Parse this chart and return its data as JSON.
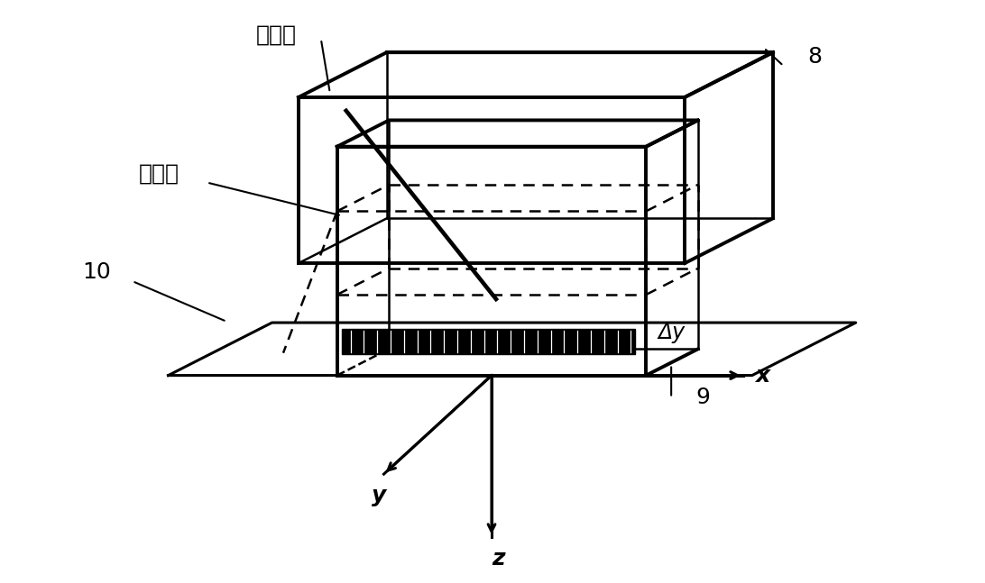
{
  "bg_color": "#ffffff",
  "line_color": "#000000",
  "lw_thick": 2.8,
  "lw_thin": 1.8,
  "lw_med": 2.2,
  "font_size_chinese": 18,
  "font_size_num": 18,
  "font_size_axis": 18,
  "labels": {
    "ru_she_mian": "入射面",
    "tan_ce_mian": "探测面",
    "x_axis": "x",
    "y_axis": "y",
    "z_axis": "z",
    "delta_y": "Δy",
    "num8": "8",
    "num9": "9",
    "num10": "10"
  }
}
